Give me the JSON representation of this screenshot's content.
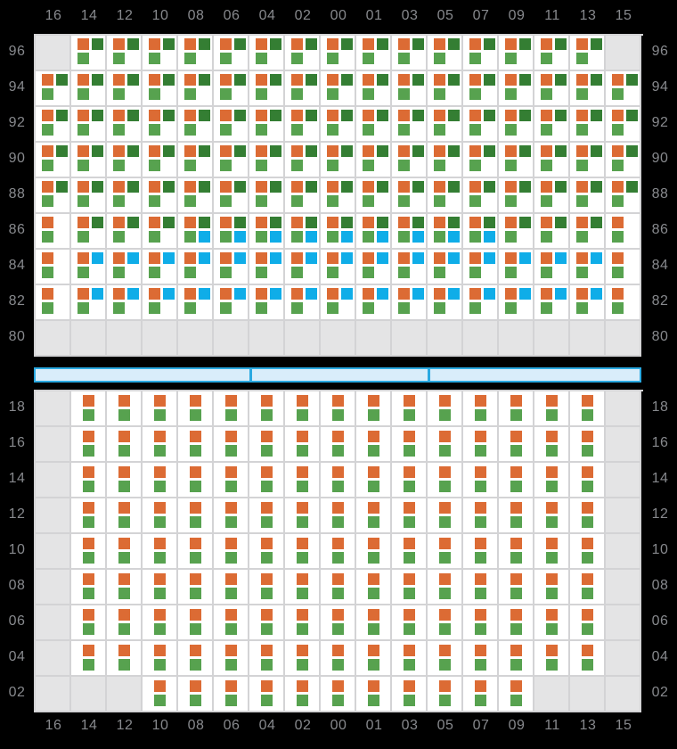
{
  "columns": [
    "16",
    "14",
    "12",
    "10",
    "08",
    "06",
    "04",
    "02",
    "00",
    "01",
    "03",
    "05",
    "07",
    "09",
    "11",
    "13",
    "15"
  ],
  "deck": {
    "rows": [
      {
        "label": "96",
        "cells": [
          "E",
          "A",
          "A",
          "A",
          "A",
          "A",
          "A",
          "A",
          "A",
          "A",
          "A",
          "A",
          "A",
          "A",
          "A",
          "A",
          "E"
        ]
      },
      {
        "label": "94",
        "cells": [
          "A",
          "A",
          "A",
          "A",
          "A",
          "A",
          "A",
          "A",
          "A",
          "A",
          "A",
          "A",
          "A",
          "A",
          "A",
          "A",
          "A"
        ]
      },
      {
        "label": "92",
        "cells": [
          "A",
          "A",
          "A",
          "A",
          "A",
          "A",
          "A",
          "A",
          "A",
          "A",
          "A",
          "A",
          "A",
          "A",
          "A",
          "A",
          "A"
        ]
      },
      {
        "label": "90",
        "cells": [
          "A",
          "A",
          "A",
          "A",
          "A",
          "A",
          "A",
          "A",
          "A",
          "A",
          "A",
          "A",
          "A",
          "A",
          "A",
          "A",
          "A"
        ]
      },
      {
        "label": "88",
        "cells": [
          "A",
          "A",
          "A",
          "A",
          "A",
          "A",
          "A",
          "A",
          "A",
          "A",
          "A",
          "A",
          "A",
          "A",
          "A",
          "A",
          "A"
        ]
      },
      {
        "label": "86",
        "cells": [
          "C",
          "A",
          "A",
          "A",
          "B",
          "B",
          "B",
          "B",
          "B",
          "B",
          "B",
          "B",
          "B",
          "A",
          "A",
          "A",
          "C"
        ]
      },
      {
        "label": "84",
        "cells": [
          "C",
          "D",
          "D",
          "D",
          "D",
          "D",
          "D",
          "D",
          "D",
          "D",
          "D",
          "D",
          "D",
          "D",
          "D",
          "D",
          "C"
        ]
      },
      {
        "label": "82",
        "cells": [
          "C",
          "D",
          "D",
          "D",
          "D",
          "D",
          "D",
          "D",
          "D",
          "D",
          "D",
          "D",
          "D",
          "D",
          "D",
          "D",
          "C"
        ]
      },
      {
        "label": "80",
        "cells": [
          "E",
          "E",
          "E",
          "E",
          "E",
          "E",
          "E",
          "E",
          "E",
          "E",
          "E",
          "E",
          "E",
          "E",
          "E",
          "E",
          "E"
        ]
      }
    ]
  },
  "hold": {
    "rows": [
      {
        "label": "18",
        "cells": [
          "E",
          "V",
          "V",
          "V",
          "V",
          "V",
          "V",
          "V",
          "V",
          "V",
          "V",
          "V",
          "V",
          "V",
          "V",
          "V",
          "E"
        ]
      },
      {
        "label": "16",
        "cells": [
          "E",
          "V",
          "V",
          "V",
          "V",
          "V",
          "V",
          "V",
          "V",
          "V",
          "V",
          "V",
          "V",
          "V",
          "V",
          "V",
          "E"
        ]
      },
      {
        "label": "14",
        "cells": [
          "E",
          "V",
          "V",
          "V",
          "V",
          "V",
          "V",
          "V",
          "V",
          "V",
          "V",
          "V",
          "V",
          "V",
          "V",
          "V",
          "E"
        ]
      },
      {
        "label": "12",
        "cells": [
          "E",
          "V",
          "V",
          "V",
          "V",
          "V",
          "V",
          "V",
          "V",
          "V",
          "V",
          "V",
          "V",
          "V",
          "V",
          "V",
          "E"
        ]
      },
      {
        "label": "10",
        "cells": [
          "E",
          "V",
          "V",
          "V",
          "V",
          "V",
          "V",
          "V",
          "V",
          "V",
          "V",
          "V",
          "V",
          "V",
          "V",
          "V",
          "E"
        ]
      },
      {
        "label": "08",
        "cells": [
          "E",
          "V",
          "V",
          "V",
          "V",
          "V",
          "V",
          "V",
          "V",
          "V",
          "V",
          "V",
          "V",
          "V",
          "V",
          "V",
          "E"
        ]
      },
      {
        "label": "06",
        "cells": [
          "E",
          "V",
          "V",
          "V",
          "V",
          "V",
          "V",
          "V",
          "V",
          "V",
          "V",
          "V",
          "V",
          "V",
          "V",
          "V",
          "E"
        ]
      },
      {
        "label": "04",
        "cells": [
          "E",
          "V",
          "V",
          "V",
          "V",
          "V",
          "V",
          "V",
          "V",
          "V",
          "V",
          "V",
          "V",
          "V",
          "V",
          "V",
          "E"
        ]
      },
      {
        "label": "02",
        "cells": [
          "E",
          "E",
          "E",
          "V",
          "V",
          "V",
          "V",
          "V",
          "V",
          "V",
          "V",
          "V",
          "V",
          "V",
          "E",
          "E",
          "E"
        ]
      }
    ]
  },
  "patterns": {
    "A": [
      "tl:orange",
      "tr:dark_green",
      "bl:green"
    ],
    "B": [
      "tl:orange",
      "tr:dark_green",
      "bl:green",
      "br:blue"
    ],
    "C": [
      "tl:orange",
      "bl:green"
    ],
    "D": [
      "tl:orange",
      "tr:blue",
      "bl:green"
    ],
    "V": [
      "ct:orange",
      "cb:green"
    ],
    "E": []
  },
  "hatch_bar": {
    "segments": 3
  },
  "colors": {
    "orange": "#DC6B34",
    "dark_green": "#347E33",
    "green": "#57A24F",
    "blue": "#0FADE8",
    "hatch_fill": "#D9EDFA",
    "hatch_border": "#2AA9E1",
    "empty_cell": "#E4E4E5",
    "grid_line": "#D3D3D5",
    "cell_bg": "#FFFFFF",
    "background": "#000000",
    "label_text": "#87898D"
  }
}
